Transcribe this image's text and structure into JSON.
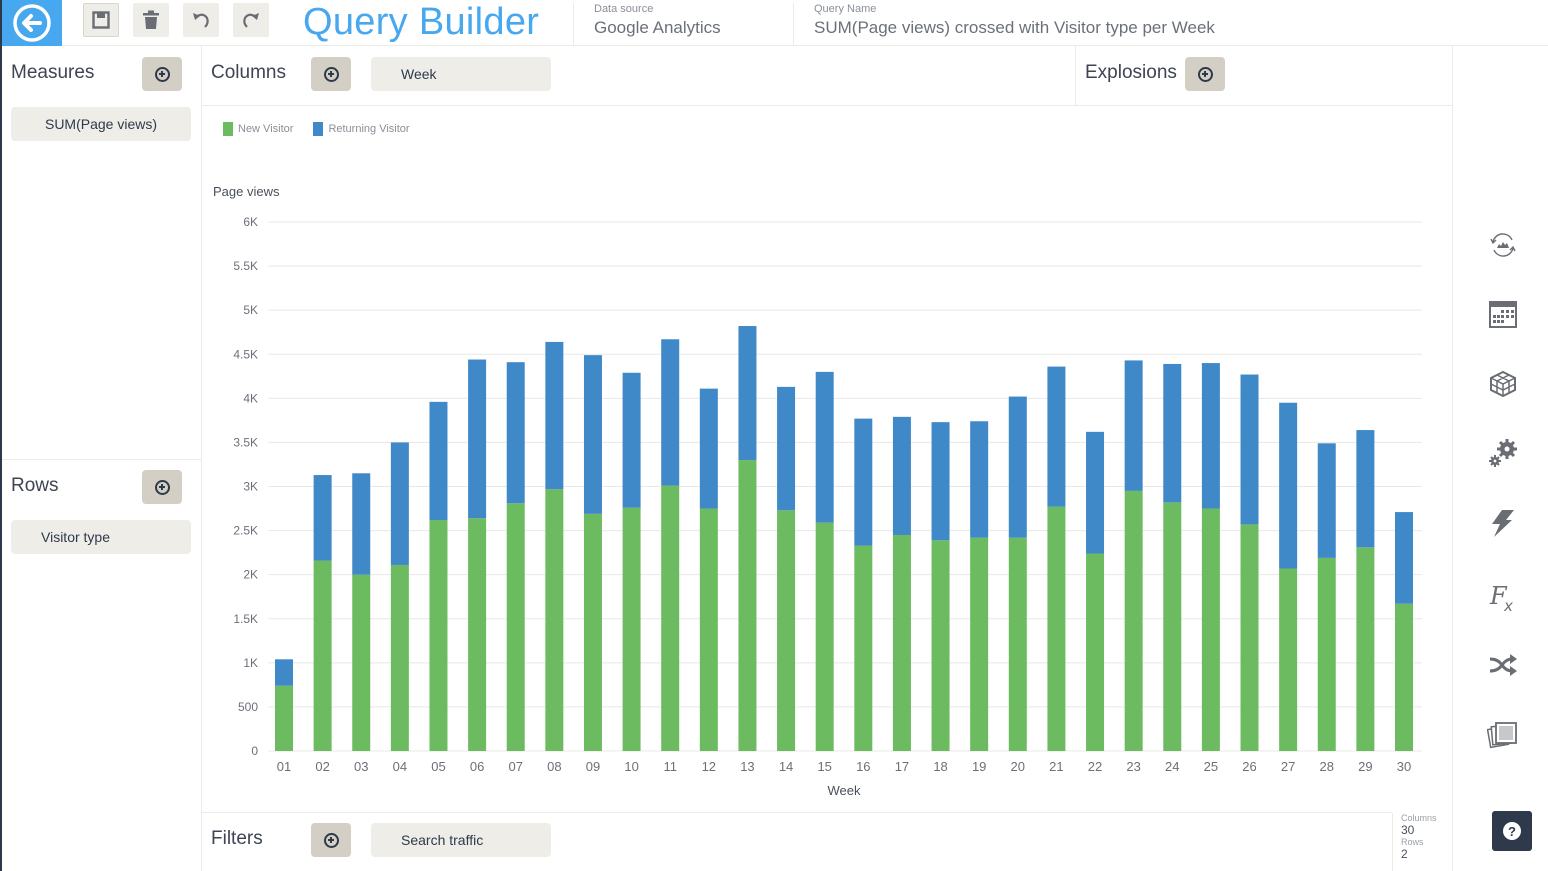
{
  "header": {
    "title": "Query Builder",
    "data_source_label": "Data source",
    "data_source_value": "Google Analytics",
    "query_name_label": "Query Name",
    "query_name_value": "SUM(Page views) crossed with Visitor type per Week",
    "icons": [
      "back-arrow-icon",
      "save-icon",
      "trash-icon",
      "undo-icon",
      "redo-icon"
    ]
  },
  "measures": {
    "title": "Measures",
    "items": [
      "SUM(Page views)"
    ]
  },
  "rows": {
    "title": "Rows",
    "items": [
      "Visitor type"
    ]
  },
  "columns": {
    "title": "Columns",
    "items": [
      "Week"
    ]
  },
  "explosions": {
    "title": "Explosions",
    "items": []
  },
  "filters": {
    "title": "Filters",
    "items": [
      "Search traffic"
    ]
  },
  "stats": {
    "columns_label": "Columns",
    "columns_value": "30",
    "rows_label": "Rows",
    "rows_value": "2"
  },
  "right_toolbar": {
    "icons": [
      "refresh-chart-icon",
      "calendar-icon",
      "cube-icon",
      "settings-gears-icon",
      "lightning-icon",
      "formula-icon",
      "shuffle-icon",
      "gallery-icon"
    ],
    "help_label": "?"
  },
  "colors": {
    "accent": "#47a8ef",
    "new_visitor": "#6dbb61",
    "returning_visitor": "#4089c8",
    "dark": "#2e3a4b"
  },
  "chart_data": {
    "type": "bar",
    "stacked": true,
    "title": "",
    "xlabel": "Week",
    "ylabel": "Page views",
    "ylim": [
      0,
      6000
    ],
    "yticks": [
      0,
      500,
      1000,
      1500,
      2000,
      2500,
      3000,
      3500,
      4000,
      4500,
      5000,
      5500,
      6000
    ],
    "ytick_labels": [
      "0",
      "500",
      "1K",
      "1.5K",
      "2K",
      "2.5K",
      "3K",
      "3.5K",
      "4K",
      "4.5K",
      "5K",
      "5.5K",
      "6K"
    ],
    "grid": true,
    "legend_position": "top-left",
    "categories": [
      "01",
      "02",
      "03",
      "04",
      "05",
      "06",
      "07",
      "08",
      "09",
      "10",
      "11",
      "12",
      "13",
      "14",
      "15",
      "16",
      "17",
      "18",
      "19",
      "20",
      "21",
      "22",
      "23",
      "24",
      "25",
      "26",
      "27",
      "28",
      "29",
      "30"
    ],
    "series": [
      {
        "name": "New Visitor",
        "color": "#6dbb61",
        "values": [
          740,
          2160,
          2000,
          2110,
          2620,
          2640,
          2810,
          2970,
          2690,
          2760,
          3010,
          2750,
          3300,
          2730,
          2590,
          2330,
          2450,
          2390,
          2420,
          2420,
          2770,
          2240,
          2950,
          2820,
          2750,
          2570,
          2070,
          2190,
          2310,
          1670
        ]
      },
      {
        "name": "Returning Visitor",
        "color": "#4089c8",
        "values": [
          300,
          970,
          1150,
          1390,
          1340,
          1800,
          1600,
          1670,
          1800,
          1530,
          1660,
          1360,
          1520,
          1400,
          1710,
          1440,
          1340,
          1340,
          1320,
          1600,
          1590,
          1380,
          1480,
          1570,
          1650,
          1700,
          1880,
          1300,
          1330,
          1040
        ]
      }
    ]
  }
}
